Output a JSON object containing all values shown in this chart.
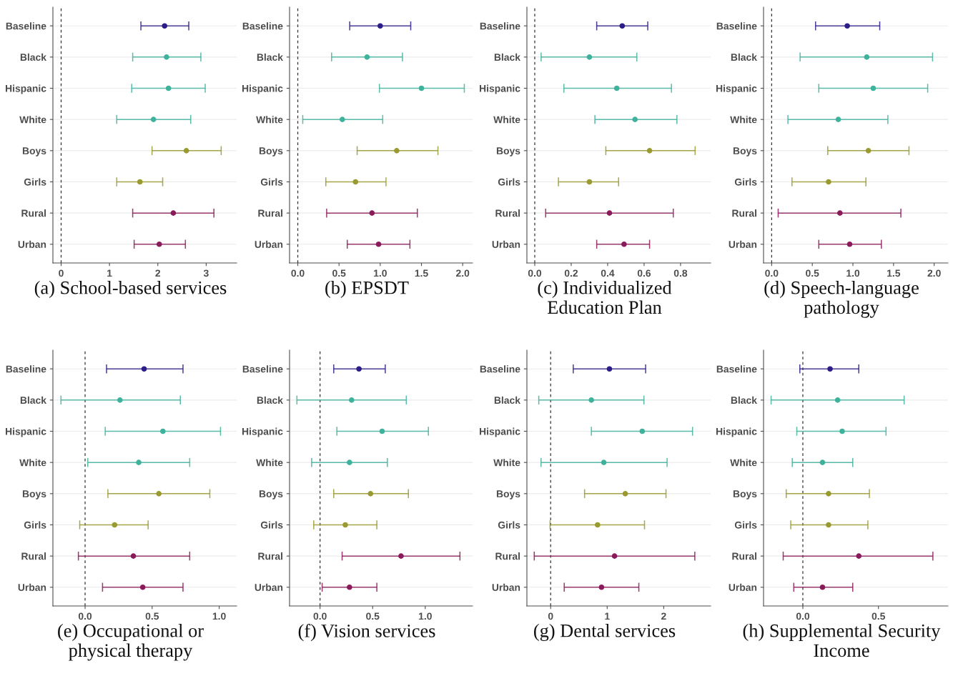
{
  "chart_data": [
    {
      "type": "scatter",
      "orientation": "horizontal",
      "title": "(a) School-based services",
      "categories": [
        "Baseline",
        "Black",
        "Hispanic",
        "White",
        "Boys",
        "Girls",
        "Rural",
        "Urban"
      ],
      "values": [
        2.14,
        2.18,
        2.22,
        1.91,
        2.59,
        1.63,
        2.32,
        2.03
      ],
      "errors": [
        [
          1.65,
          2.64
        ],
        [
          1.48,
          2.89
        ],
        [
          1.46,
          2.98
        ],
        [
          1.15,
          2.68
        ],
        [
          1.88,
          3.31
        ],
        [
          1.15,
          2.1
        ],
        [
          1.48,
          3.16
        ],
        [
          1.51,
          2.57
        ]
      ],
      "colors": [
        "#2c1d87",
        "#3fb29c",
        "#3fb29c",
        "#3fb29c",
        "#999a2f",
        "#999a2f",
        "#8b1a5b",
        "#8b1a5b"
      ],
      "xlim": [
        -0.17,
        3.63
      ],
      "xticks": [
        0,
        1,
        2,
        3
      ],
      "ref_lines": [
        {
          "axis": "x",
          "value": 0,
          "line_style": "dashed"
        }
      ],
      "grid": "y",
      "marker": "circle"
    },
    {
      "type": "scatter",
      "orientation": "horizontal",
      "title": "(b) EPSDT",
      "categories": [
        "Baseline",
        "Black",
        "Hispanic",
        "White",
        "Boys",
        "Girls",
        "Rural",
        "Urban"
      ],
      "values": [
        1.0,
        0.84,
        1.5,
        0.54,
        1.2,
        0.7,
        0.9,
        0.98
      ],
      "errors": [
        [
          0.63,
          1.37
        ],
        [
          0.41,
          1.27
        ],
        [
          0.99,
          2.02
        ],
        [
          0.06,
          1.03
        ],
        [
          0.72,
          1.7
        ],
        [
          0.34,
          1.07
        ],
        [
          0.35,
          1.45
        ],
        [
          0.6,
          1.36
        ]
      ],
      "colors": [
        "#2c1d87",
        "#3fb29c",
        "#3fb29c",
        "#3fb29c",
        "#999a2f",
        "#999a2f",
        "#8b1a5b",
        "#8b1a5b"
      ],
      "xlim": [
        -0.1,
        2.12
      ],
      "xticks": [
        {
          "value": 0,
          "label": "0.0"
        },
        0.5,
        {
          "value": 1,
          "label": "1.0"
        },
        1.5,
        {
          "value": 2,
          "label": "2.0"
        }
      ],
      "ref_lines": [
        {
          "axis": "x",
          "value": 0,
          "line_style": "dashed"
        }
      ],
      "grid": "y",
      "marker": "circle"
    },
    {
      "type": "scatter",
      "orientation": "horizontal",
      "title": "(c) Individualized Education Plan",
      "categories": [
        "Baseline",
        "Black",
        "Hispanic",
        "White",
        "Boys",
        "Girls",
        "Rural",
        "Urban"
      ],
      "values": [
        0.48,
        0.3,
        0.45,
        0.55,
        0.63,
        0.3,
        0.41,
        0.49
      ],
      "errors": [
        [
          0.34,
          0.62
        ],
        [
          0.035,
          0.56
        ],
        [
          0.16,
          0.75
        ],
        [
          0.33,
          0.78
        ],
        [
          0.39,
          0.88
        ],
        [
          0.13,
          0.46
        ],
        [
          0.06,
          0.76
        ],
        [
          0.34,
          0.63
        ]
      ],
      "colors": [
        "#2c1d87",
        "#3fb29c",
        "#3fb29c",
        "#3fb29c",
        "#999a2f",
        "#999a2f",
        "#8b1a5b",
        "#8b1a5b"
      ],
      "xlim": [
        -0.043,
        0.965
      ],
      "xticks": [
        {
          "value": 0,
          "label": "0.0"
        },
        0.2,
        0.4,
        0.6,
        0.8
      ],
      "ref_lines": [
        {
          "axis": "x",
          "value": 0,
          "line_style": "dashed"
        }
      ],
      "grid": "y",
      "marker": "circle"
    },
    {
      "type": "scatter",
      "orientation": "horizontal",
      "title": "(d) Speech-language pathology",
      "categories": [
        "Baseline",
        "Black",
        "Hispanic",
        "White",
        "Boys",
        "Girls",
        "Rural",
        "Urban"
      ],
      "values": [
        0.93,
        1.17,
        1.25,
        0.82,
        1.19,
        0.7,
        0.84,
        0.96
      ],
      "errors": [
        [
          0.54,
          1.33
        ],
        [
          0.35,
          1.98
        ],
        [
          0.58,
          1.92
        ],
        [
          0.2,
          1.43
        ],
        [
          0.69,
          1.69
        ],
        [
          0.25,
          1.16
        ],
        [
          0.08,
          1.59
        ],
        [
          0.58,
          1.35
        ]
      ],
      "colors": [
        "#2c1d87",
        "#3fb29c",
        "#3fb29c",
        "#3fb29c",
        "#999a2f",
        "#999a2f",
        "#8b1a5b",
        "#8b1a5b"
      ],
      "xlim": [
        -0.1,
        2.17
      ],
      "xticks": [
        {
          "value": 0,
          "label": "0.0"
        },
        0.5,
        {
          "value": 1,
          "label": "1.0"
        },
        1.5,
        {
          "value": 2,
          "label": "2.0"
        }
      ],
      "ref_lines": [
        {
          "axis": "x",
          "value": 0,
          "line_style": "dashed"
        }
      ],
      "grid": "y",
      "marker": "circle"
    },
    {
      "type": "scatter",
      "orientation": "horizontal",
      "title": "(e) Occupational or physical therapy",
      "categories": [
        "Baseline",
        "Black",
        "Hispanic",
        "White",
        "Boys",
        "Girls",
        "Rural",
        "Urban"
      ],
      "values": [
        0.44,
        0.26,
        0.58,
        0.4,
        0.55,
        0.22,
        0.36,
        0.43
      ],
      "errors": [
        [
          0.16,
          0.73
        ],
        [
          -0.18,
          0.71
        ],
        [
          0.15,
          1.01
        ],
        [
          0.02,
          0.78
        ],
        [
          0.17,
          0.93
        ],
        [
          -0.04,
          0.47
        ],
        [
          -0.05,
          0.78
        ],
        [
          0.13,
          0.73
        ]
      ],
      "colors": [
        "#2c1d87",
        "#3fb29c",
        "#3fb29c",
        "#3fb29c",
        "#999a2f",
        "#999a2f",
        "#8b1a5b",
        "#8b1a5b"
      ],
      "xlim": [
        -0.24,
        1.13
      ],
      "xticks": [
        {
          "value": 0,
          "label": "0.0"
        },
        0.5,
        {
          "value": 1,
          "label": "1.0"
        }
      ],
      "ref_lines": [
        {
          "axis": "x",
          "value": 0,
          "line_style": "dashed"
        }
      ],
      "grid": "y",
      "marker": "circle"
    },
    {
      "type": "scatter",
      "orientation": "horizontal",
      "title": "(f) Vision services",
      "categories": [
        "Baseline",
        "Black",
        "Hispanic",
        "White",
        "Boys",
        "Girls",
        "Rural",
        "Urban"
      ],
      "values": [
        0.37,
        0.3,
        0.59,
        0.28,
        0.48,
        0.24,
        0.77,
        0.28
      ],
      "errors": [
        [
          0.13,
          0.62
        ],
        [
          -0.22,
          0.82
        ],
        [
          0.16,
          1.03
        ],
        [
          -0.08,
          0.64
        ],
        [
          0.13,
          0.84
        ],
        [
          -0.06,
          0.54
        ],
        [
          0.21,
          1.33
        ],
        [
          0.02,
          0.54
        ]
      ],
      "colors": [
        "#2c1d87",
        "#3fb29c",
        "#3fb29c",
        "#3fb29c",
        "#999a2f",
        "#999a2f",
        "#8b1a5b",
        "#8b1a5b"
      ],
      "xlim": [
        -0.29,
        1.45
      ],
      "xticks": [
        {
          "value": 0,
          "label": "0.0"
        },
        0.5,
        {
          "value": 1,
          "label": "1.0"
        }
      ],
      "ref_lines": [
        {
          "axis": "x",
          "value": 0,
          "line_style": "dashed"
        }
      ],
      "grid": "y",
      "marker": "circle"
    },
    {
      "type": "scatter",
      "orientation": "horizontal",
      "title": "(g) Dental services",
      "categories": [
        "Baseline",
        "Black",
        "Hispanic",
        "White",
        "Boys",
        "Girls",
        "Rural",
        "Urban"
      ],
      "values": [
        1.04,
        0.72,
        1.62,
        0.94,
        1.32,
        0.83,
        1.13,
        0.9
      ],
      "errors": [
        [
          0.4,
          1.68
        ],
        [
          -0.21,
          1.65
        ],
        [
          0.72,
          2.51
        ],
        [
          -0.17,
          2.06
        ],
        [
          0.6,
          2.04
        ],
        [
          -0.01,
          1.66
        ],
        [
          -0.29,
          2.55
        ],
        [
          0.24,
          1.56
        ]
      ],
      "colors": [
        "#2c1d87",
        "#3fb29c",
        "#3fb29c",
        "#3fb29c",
        "#999a2f",
        "#999a2f",
        "#8b1a5b",
        "#8b1a5b"
      ],
      "xlim": [
        -0.42,
        2.83
      ],
      "xticks": [
        0,
        1,
        2
      ],
      "ref_lines": [
        {
          "axis": "x",
          "value": 0,
          "line_style": "dashed"
        }
      ],
      "grid": "y",
      "marker": "circle"
    },
    {
      "type": "scatter",
      "orientation": "horizontal",
      "title": "(h) Supplemental Security Income",
      "categories": [
        "Baseline",
        "Black",
        "Hispanic",
        "White",
        "Boys",
        "Girls",
        "Rural",
        "Urban"
      ],
      "values": [
        0.18,
        0.23,
        0.26,
        0.13,
        0.17,
        0.17,
        0.37,
        0.13
      ],
      "errors": [
        [
          -0.02,
          0.37
        ],
        [
          -0.21,
          0.67
        ],
        [
          -0.04,
          0.55
        ],
        [
          -0.07,
          0.33
        ],
        [
          -0.11,
          0.44
        ],
        [
          -0.08,
          0.43
        ],
        [
          -0.13,
          0.86
        ],
        [
          -0.06,
          0.33
        ]
      ],
      "colors": [
        "#2c1d87",
        "#3fb29c",
        "#3fb29c",
        "#3fb29c",
        "#999a2f",
        "#999a2f",
        "#8b1a5b",
        "#8b1a5b"
      ],
      "xlim": [
        -0.26,
        0.96
      ],
      "xticks": [
        {
          "value": 0,
          "label": "0.0"
        },
        0.5
      ],
      "ref_lines": [
        {
          "axis": "x",
          "value": 0,
          "line_style": "dashed"
        }
      ],
      "grid": "y",
      "marker": "circle"
    }
  ]
}
